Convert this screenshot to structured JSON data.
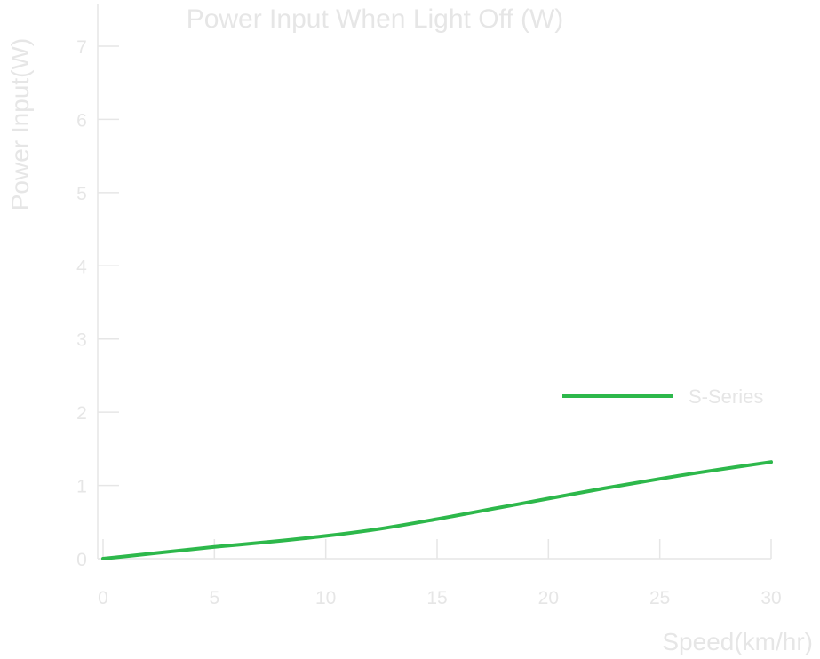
{
  "chart_data": {
    "type": "line",
    "title": "Power Input When Light Off (W)",
    "xlabel": "Speed(km/hr)",
    "ylabel": "Power Input(W)",
    "xlim": [
      0,
      30
    ],
    "ylim": [
      0,
      7
    ],
    "xticks": [
      0,
      5,
      10,
      15,
      20,
      25,
      30
    ],
    "yticks": [
      0,
      1,
      2,
      3,
      4,
      5,
      6,
      7
    ],
    "grid": false,
    "legend_position": "right",
    "series": [
      {
        "name": "S-Series",
        "color": "#2db84b",
        "x": [
          0,
          2.5,
          5,
          7.5,
          10,
          12.5,
          15,
          17.5,
          20,
          22.5,
          25,
          27.5,
          30
        ],
        "y": [
          0.0,
          0.08,
          0.16,
          0.23,
          0.31,
          0.41,
          0.54,
          0.68,
          0.82,
          0.96,
          1.09,
          1.21,
          1.32
        ]
      }
    ]
  },
  "colors": {
    "text": "#e6e6e6",
    "axis": "#e6e6e6",
    "series": "#2db84b"
  }
}
